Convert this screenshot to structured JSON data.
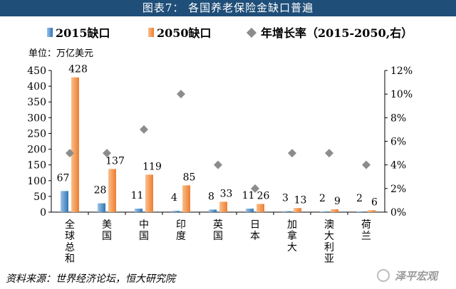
{
  "header": {
    "title": "图表7：  各国养老保险金缺口普遍"
  },
  "unit_label": "单位：万亿美元",
  "source": "资料来源：世界经济论坛，恒大研究院",
  "watermark": "泽平宏观",
  "colors": {
    "header_bg": "#1f4e79",
    "bar_2015": "#5b9bd5",
    "bar_2050": "#f4a460",
    "rate": "#8c8c8c"
  },
  "chart_data": {
    "type": "bar",
    "categories": [
      "全球总和",
      "美国",
      "中国",
      "印度",
      "英国",
      "日本",
      "加拿大",
      "澳大利亚",
      "荷兰"
    ],
    "series": [
      {
        "name": "2015缺口",
        "axis": "left",
        "values": [
          67,
          28,
          11,
          4,
          8,
          11,
          3,
          2,
          2
        ]
      },
      {
        "name": "2050缺口",
        "axis": "left",
        "values": [
          428,
          137,
          119,
          85,
          33,
          26,
          13,
          9,
          6
        ]
      },
      {
        "name": "年增长率（2015-2050,右）",
        "axis": "right",
        "type": "scatter",
        "values": [
          5,
          5,
          7,
          10,
          4,
          2,
          5,
          5,
          4
        ]
      }
    ],
    "y_left": {
      "min": 0,
      "max": 450,
      "ticks": [
        "0",
        "50",
        "100",
        "150",
        "200",
        "250",
        "300",
        "350",
        "400",
        "450"
      ]
    },
    "y_right": {
      "min": 0,
      "max": 12,
      "ticks": [
        "0%",
        "2%",
        "4%",
        "6%",
        "8%",
        "10%",
        "12%"
      ]
    },
    "grid": false,
    "legend_position": "top"
  }
}
